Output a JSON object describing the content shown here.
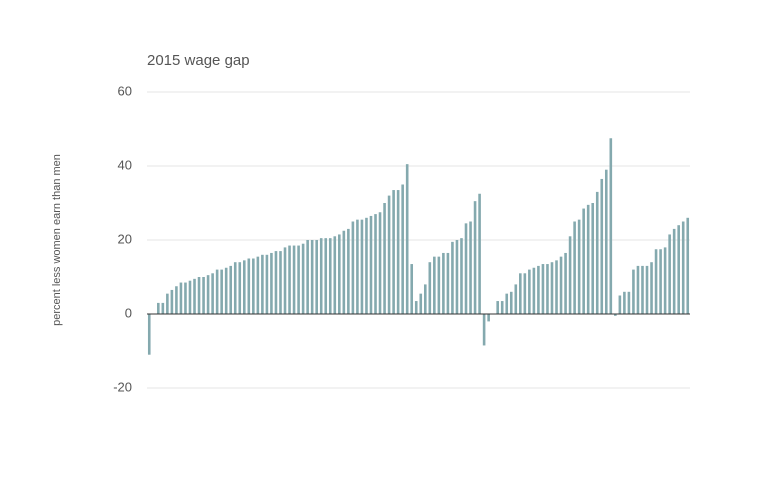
{
  "chart_data": {
    "type": "bar",
    "title": "2015 wage gap",
    "y_label": "percent less women earn than men",
    "values": [
      -11,
      0,
      3,
      3,
      5.5,
      6.5,
      7.5,
      8.5,
      8.5,
      9,
      9.5,
      10,
      10,
      10.5,
      11,
      12,
      12,
      12.5,
      13,
      14,
      14,
      14.5,
      15,
      15,
      15.5,
      16,
      16,
      16.5,
      17,
      17,
      18,
      18.5,
      18.5,
      18.5,
      19,
      20,
      20,
      20,
      20.5,
      20.5,
      20.5,
      21,
      21.5,
      22.5,
      23,
      25,
      25.5,
      25.5,
      26,
      26.5,
      27,
      27.5,
      30,
      32,
      33.5,
      33.5,
      35,
      40.5,
      13.5,
      3.5,
      5.5,
      8,
      14,
      15.5,
      15.5,
      16.5,
      16.5,
      19.5,
      20,
      20.5,
      24.5,
      25,
      30.5,
      32.5,
      -8.5,
      -2,
      0,
      3.5,
      3.5,
      5.5,
      6,
      8,
      11,
      11,
      12,
      12.5,
      13,
      13.5,
      13.5,
      14,
      14.5,
      15.5,
      16.5,
      21,
      25,
      25.5,
      28.5,
      29.5,
      30,
      33,
      36.5,
      39,
      47.5,
      -0.5,
      5,
      6,
      6,
      12,
      13,
      13,
      13,
      14,
      17.5,
      17.5,
      18,
      21.5,
      23,
      24,
      25,
      26
    ],
    "color": "#84a9ae",
    "ylim": [
      -20,
      60
    ],
    "yticks": [
      -20,
      0,
      20,
      40,
      60
    ],
    "grid": true
  }
}
